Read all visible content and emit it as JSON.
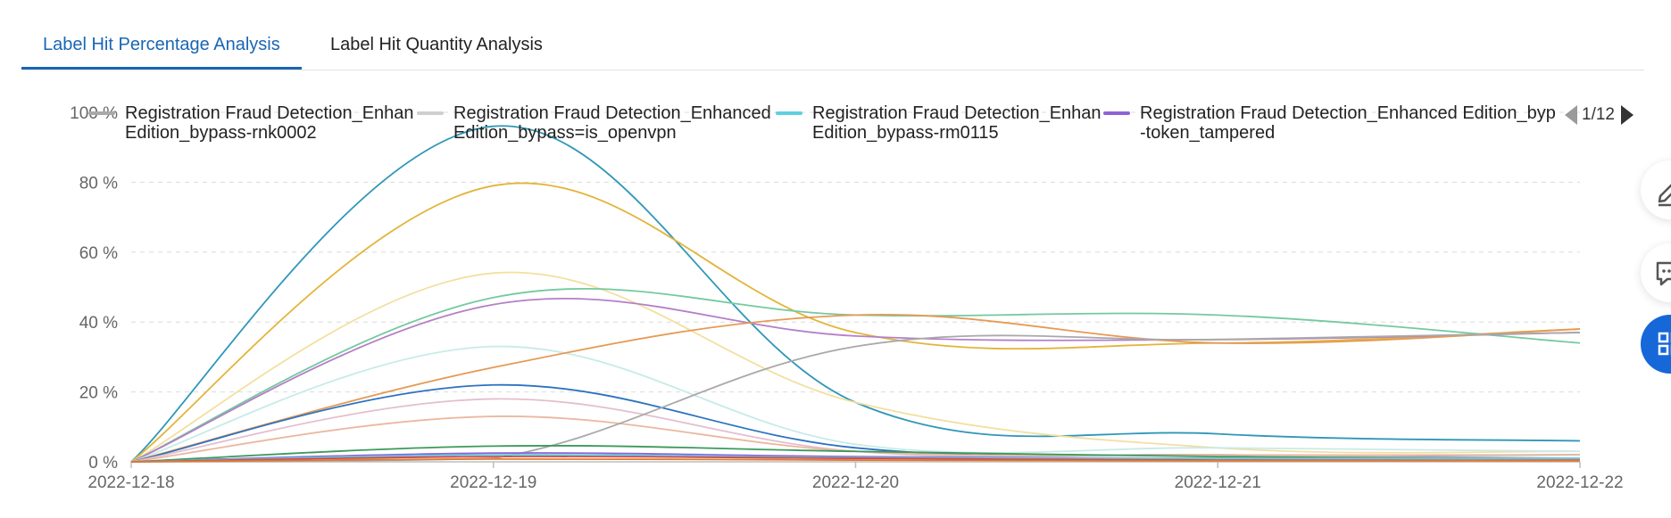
{
  "tabs": [
    {
      "label": "Label Hit Percentage Analysis",
      "active": true
    },
    {
      "label": "Label Hit Quantity Analysis",
      "active": false
    }
  ],
  "legend": {
    "items": [
      {
        "label": "Registration Fraud Detection_Enhan\nEdition_bypass-rnk0002",
        "color": "#a9a9a9"
      },
      {
        "label": "Registration Fraud Detection_Enhanced\nEdition_bypass=is_openvpn",
        "color": "#cfcfcf"
      },
      {
        "label": "Registration Fraud Detection_Enhan\nEdition_bypass-rm0115",
        "color": "#5fd0e0"
      },
      {
        "label": "Registration Fraud Detection_Enhanced Edition_byp\n-token_tampered",
        "color": "#8f63d8"
      }
    ],
    "page": "1/12"
  },
  "side_buttons": [
    {
      "icon": "edit-icon"
    },
    {
      "icon": "chat-icon"
    },
    {
      "icon": "apps-icon"
    }
  ],
  "chart_data": {
    "type": "line",
    "x": [
      "2022-12-18",
      "2022-12-19",
      "2022-12-20",
      "2022-12-21",
      "2022-12-22"
    ],
    "y_ticks": [
      "0 %",
      "20 %",
      "40 %",
      "60 %",
      "80 %",
      "100 %"
    ],
    "ylim": [
      0,
      100
    ],
    "grid": true,
    "legend_position": "top",
    "series": [
      {
        "color": "#2f97b8",
        "values": [
          0,
          96,
          17,
          8,
          6
        ]
      },
      {
        "color": "#e3b43a",
        "values": [
          0,
          79,
          37,
          34,
          38
        ]
      },
      {
        "color": "#f3dfa0",
        "values": [
          0,
          54,
          17,
          4,
          3
        ]
      },
      {
        "color": "#74c9a0",
        "values": [
          0,
          47,
          42,
          42,
          34
        ]
      },
      {
        "color": "#b57fc8",
        "values": [
          0,
          45,
          36,
          35,
          37
        ]
      },
      {
        "color": "#c7ebe7",
        "values": [
          0,
          33,
          5,
          4,
          3
        ]
      },
      {
        "color": "#e59a55",
        "values": [
          0,
          27,
          42,
          34,
          38
        ]
      },
      {
        "color": "#2c72c0",
        "values": [
          0,
          22,
          4,
          2,
          2
        ]
      },
      {
        "color": "#e3bfcf",
        "values": [
          0,
          18,
          3,
          2,
          1
        ]
      },
      {
        "color": "#eab8a0",
        "values": [
          0,
          13,
          3,
          2,
          2
        ]
      },
      {
        "color": "#a9a9a9",
        "values": [
          0,
          1,
          33,
          35,
          37
        ]
      },
      {
        "color": "#3c9a5a",
        "values": [
          0,
          4.5,
          3,
          1.5,
          1
        ]
      },
      {
        "color": "#8f63d8",
        "values": [
          0,
          2.5,
          1.5,
          1,
          1
        ]
      },
      {
        "color": "#5fd0e0",
        "values": [
          0,
          2,
          1.2,
          1,
          1
        ]
      },
      {
        "color": "#d04848",
        "values": [
          0,
          1.5,
          1,
          0.5,
          0.5
        ]
      },
      {
        "color": "#e07a30",
        "values": [
          0,
          0.8,
          0.5,
          0.3,
          0.3
        ]
      }
    ]
  }
}
